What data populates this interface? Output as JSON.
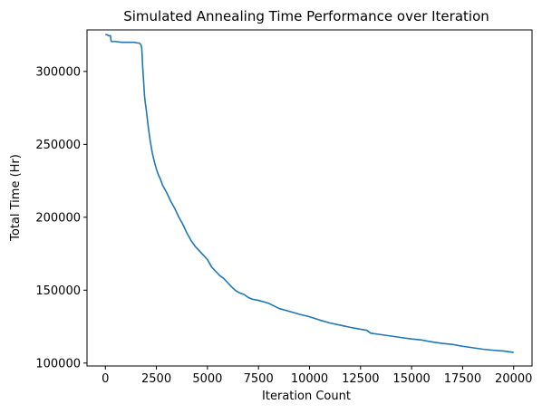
{
  "chart_data": {
    "type": "line",
    "title": "Simulated Annealing Time Performance over Iteration",
    "xlabel": "Iteration Count",
    "ylabel": "Total Time (Hr)",
    "xlim": [
      -900,
      20900
    ],
    "ylim": [
      98000,
      328500
    ],
    "xticks": [
      0,
      2500,
      5000,
      7500,
      10000,
      12500,
      15000,
      17500,
      20000
    ],
    "xtick_labels": [
      "0",
      "2500",
      "5000",
      "7500",
      "10000",
      "12500",
      "15000",
      "17500",
      "20000"
    ],
    "yticks": [
      100000,
      150000,
      200000,
      250000,
      300000
    ],
    "ytick_labels": [
      "100000",
      "150000",
      "200000",
      "250000",
      "300000"
    ],
    "grid": false,
    "legend": "none",
    "series": [
      {
        "color": "#1f77b4",
        "x": [
          0,
          100,
          150,
          250,
          280,
          300,
          350,
          500,
          800,
          1100,
          1400,
          1600,
          1650,
          1700,
          1750,
          1780,
          1800,
          1820,
          1850,
          1880,
          1900,
          1920,
          1950,
          2000,
          2050,
          2100,
          2150,
          2200,
          2250,
          2300,
          2400,
          2500,
          2600,
          2700,
          2800,
          3000,
          3200,
          3400,
          3600,
          3800,
          4000,
          4200,
          4400,
          4600,
          4800,
          5000,
          5200,
          5400,
          5600,
          5800,
          6000,
          6200,
          6400,
          6600,
          6800,
          7000,
          7200,
          7500,
          8000,
          8500,
          9000,
          9500,
          10000,
          10500,
          11000,
          11500,
          12000,
          12500,
          12800,
          13000,
          13500,
          14000,
          14500,
          15000,
          15500,
          16000,
          16500,
          17000,
          17500,
          18000,
          18500,
          19000,
          19500,
          20000
        ],
        "y": [
          325500,
          325000,
          324500,
          324500,
          321000,
          320500,
          320500,
          320500,
          320000,
          320000,
          320000,
          319500,
          319500,
          319000,
          318000,
          316000,
          312000,
          305000,
          298000,
          292000,
          287000,
          283000,
          279000,
          274000,
          268000,
          262000,
          257000,
          252000,
          248000,
          244000,
          238000,
          233000,
          229000,
          226000,
          222000,
          217000,
          211000,
          206000,
          200000,
          195000,
          189000,
          184000,
          180000,
          177000,
          174000,
          171000,
          166000,
          163000,
          160000,
          158000,
          155000,
          152000,
          149500,
          148000,
          147000,
          145000,
          143800,
          143000,
          141000,
          137500,
          135500,
          133500,
          131800,
          129500,
          127500,
          126000,
          124500,
          123200,
          122500,
          120500,
          119500,
          118500,
          117500,
          116500,
          115800,
          114500,
          113500,
          112800,
          111500,
          110500,
          109500,
          108800,
          108300,
          107300
        ]
      }
    ]
  }
}
